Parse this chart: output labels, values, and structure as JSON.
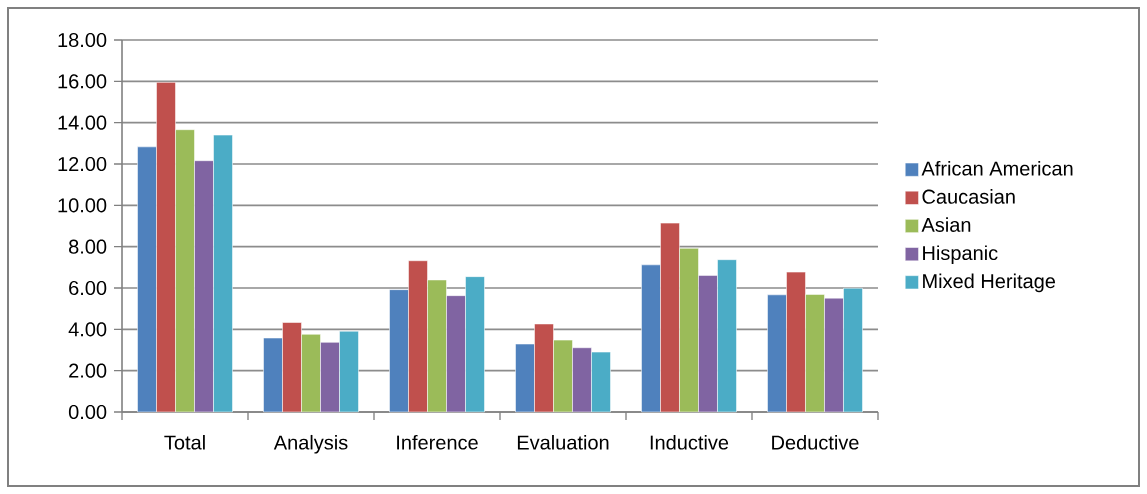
{
  "chart_data": {
    "type": "bar",
    "categories": [
      "Total",
      "Analysis",
      "Inference",
      "Evaluation",
      "Inductive",
      "Deductive"
    ],
    "series": [
      {
        "name": "African American",
        "color": "#4f81bd",
        "values": [
          12.83,
          3.58,
          5.92,
          3.29,
          7.12,
          5.67
        ]
      },
      {
        "name": "Caucasian",
        "color": "#c0504d",
        "values": [
          15.95,
          4.33,
          7.32,
          4.26,
          9.14,
          6.77
        ]
      },
      {
        "name": "Asian",
        "color": "#9bbb59",
        "values": [
          13.66,
          3.76,
          6.39,
          3.48,
          7.92,
          5.69
        ]
      },
      {
        "name": "Hispanic",
        "color": "#8064a2",
        "values": [
          12.16,
          3.37,
          5.63,
          3.11,
          6.61,
          5.51
        ]
      },
      {
        "name": "Mixed Heritage",
        "color": "#4bacc6",
        "values": [
          13.4,
          3.91,
          6.55,
          2.9,
          7.37,
          5.99
        ]
      }
    ],
    "ylim": [
      0,
      18
    ],
    "yticks": [
      {
        "value": 0,
        "label": "0.00"
      },
      {
        "value": 2,
        "label": "2.00"
      },
      {
        "value": 4,
        "label": "4.00"
      },
      {
        "value": 6,
        "label": "6.00"
      },
      {
        "value": 8,
        "label": "8.00"
      },
      {
        "value": 10,
        "label": "10.00"
      },
      {
        "value": 12,
        "label": "12.00"
      },
      {
        "value": 14,
        "label": "14.00"
      },
      {
        "value": 16,
        "label": "16.00"
      },
      {
        "value": 18,
        "label": "18.00"
      }
    ],
    "grid": "y",
    "legend": "right"
  }
}
